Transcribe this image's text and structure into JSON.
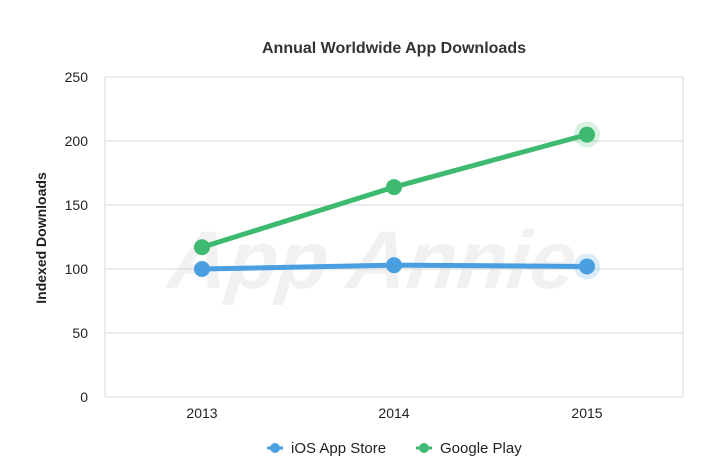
{
  "chart_data": {
    "type": "line",
    "title": "Annual Worldwide App Downloads",
    "xlabel": "",
    "ylabel": "Indexed Downloads",
    "categories": [
      "2013",
      "2014",
      "2015"
    ],
    "ylim": [
      0,
      250
    ],
    "yticks": [
      0,
      50,
      100,
      150,
      200,
      250
    ],
    "grid": true,
    "legend_position": "bottom",
    "watermark": "App Annie",
    "series": [
      {
        "name": "iOS App Store",
        "values": [
          100,
          103,
          102
        ],
        "color": "#4a9fe0"
      },
      {
        "name": "Google Play",
        "values": [
          117,
          164,
          205
        ],
        "color": "#3dba6f"
      }
    ]
  }
}
